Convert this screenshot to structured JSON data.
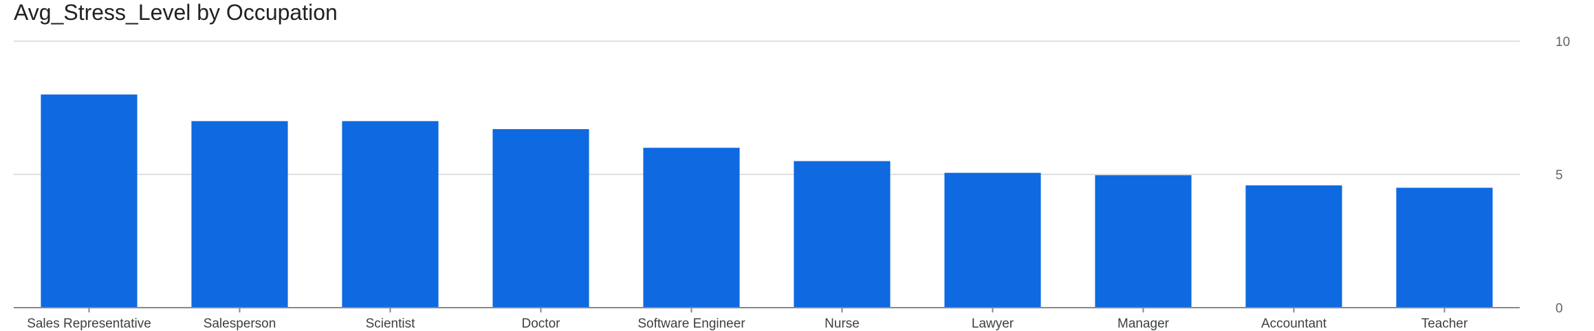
{
  "chart_data": {
    "type": "bar",
    "title": "Avg_Stress_Level by Occupation",
    "xlabel": "",
    "ylabel": "",
    "categories": [
      "Sales Representative",
      "Salesperson",
      "Scientist",
      "Doctor",
      "Software Engineer",
      "Nurse",
      "Lawyer",
      "Manager",
      "Accountant",
      "Teacher"
    ],
    "series": [
      {
        "values": [
          8.0,
          7.0,
          7.0,
          6.7,
          6.0,
          5.5,
          5.06,
          4.97,
          4.59,
          4.5
        ]
      }
    ],
    "ylim": [
      0,
      10
    ],
    "yticks": [
      "0",
      "5",
      "10"
    ],
    "y_axis_side": "right",
    "grid": true,
    "legend": "none",
    "bar_color": "#0f69e0",
    "grid_color": "#e0e0e0",
    "axis_color": "#888888"
  }
}
